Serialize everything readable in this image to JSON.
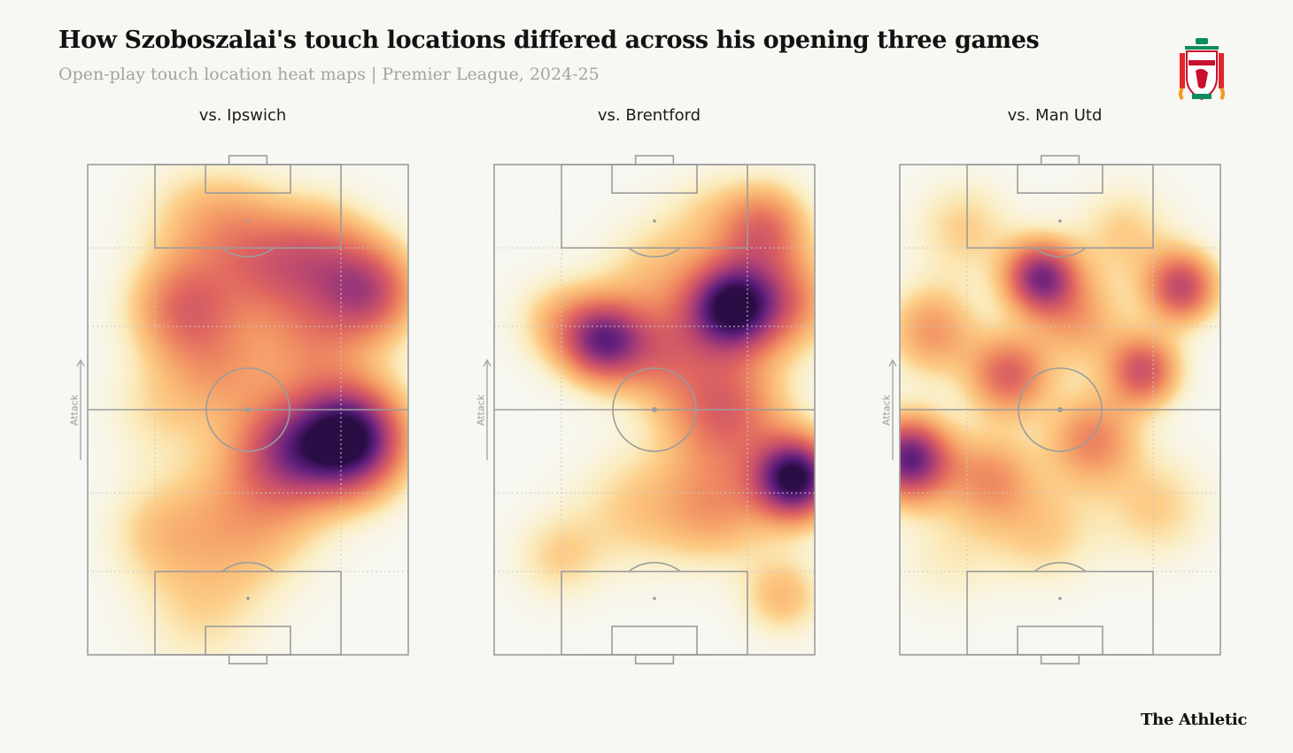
{
  "title": "How Szoboszalai's touch locations differed across his opening three games",
  "subtitle": "Open-play touch location heat maps | Premier League, 2024-25",
  "brand": "The Athletic",
  "crest_text": "LIVERPOOL",
  "attack_label": "Attack",
  "colors": {
    "background": "#f7f7f3",
    "pitch_lines": "#9c9c9c",
    "grid": "#c9c9c9",
    "scale": [
      "#fdf6d0",
      "#fde7a4",
      "#fbbf7a",
      "#f29363",
      "#e06660",
      "#bf4a6e",
      "#8f327c",
      "#5a1d7a",
      "#2b0d45"
    ]
  },
  "chart_data": [
    {
      "type": "heatmap",
      "title": "vs. Ipswich",
      "x_range": [
        0,
        100
      ],
      "y_range": [
        0,
        100
      ],
      "attack_direction": "up",
      "hotspots": [
        {
          "x": 82,
          "y": 44,
          "intensity": 1.0,
          "spread": 12
        },
        {
          "x": 62,
          "y": 42,
          "intensity": 0.5,
          "spread": 12
        },
        {
          "x": 88,
          "y": 74,
          "intensity": 0.55,
          "spread": 11
        },
        {
          "x": 30,
          "y": 71,
          "intensity": 0.45,
          "spread": 12
        },
        {
          "x": 56,
          "y": 78,
          "intensity": 0.3,
          "spread": 12
        },
        {
          "x": 72,
          "y": 82,
          "intensity": 0.35,
          "spread": 12
        },
        {
          "x": 42,
          "y": 58,
          "intensity": 0.25,
          "spread": 12
        },
        {
          "x": 70,
          "y": 64,
          "intensity": 0.28,
          "spread": 12
        },
        {
          "x": 50,
          "y": 28,
          "intensity": 0.3,
          "spread": 16
        },
        {
          "x": 22,
          "y": 25,
          "intensity": 0.18,
          "spread": 12
        },
        {
          "x": 22,
          "y": 50,
          "intensity": 0.14,
          "spread": 12
        },
        {
          "x": 45,
          "y": 88,
          "intensity": 0.22,
          "spread": 12
        },
        {
          "x": 30,
          "y": 90,
          "intensity": 0.12,
          "spread": 12
        },
        {
          "x": 35,
          "y": 8,
          "intensity": 0.15,
          "spread": 14
        }
      ]
    },
    {
      "type": "heatmap",
      "title": "vs. Brentford",
      "x_range": [
        0,
        100
      ],
      "y_range": [
        0,
        100
      ],
      "attack_direction": "up",
      "hotspots": [
        {
          "x": 74,
          "y": 71,
          "intensity": 0.95,
          "spread": 10
        },
        {
          "x": 94,
          "y": 36,
          "intensity": 1.0,
          "spread": 9
        },
        {
          "x": 34,
          "y": 64,
          "intensity": 0.7,
          "spread": 9
        },
        {
          "x": 72,
          "y": 50,
          "intensity": 0.5,
          "spread": 13
        },
        {
          "x": 84,
          "y": 87,
          "intensity": 0.45,
          "spread": 10
        },
        {
          "x": 92,
          "y": 72,
          "intensity": 0.35,
          "spread": 11
        },
        {
          "x": 52,
          "y": 62,
          "intensity": 0.35,
          "spread": 11
        },
        {
          "x": 70,
          "y": 30,
          "intensity": 0.3,
          "spread": 12
        },
        {
          "x": 50,
          "y": 78,
          "intensity": 0.2,
          "spread": 12
        },
        {
          "x": 20,
          "y": 68,
          "intensity": 0.22,
          "spread": 10
        },
        {
          "x": 20,
          "y": 20,
          "intensity": 0.18,
          "spread": 10
        },
        {
          "x": 45,
          "y": 30,
          "intensity": 0.2,
          "spread": 14
        },
        {
          "x": 90,
          "y": 12,
          "intensity": 0.25,
          "spread": 9
        },
        {
          "x": 65,
          "y": 90,
          "intensity": 0.12,
          "spread": 10
        }
      ]
    },
    {
      "type": "heatmap",
      "title": "vs. Man Utd",
      "x_range": [
        0,
        100
      ],
      "y_range": [
        0,
        100
      ],
      "attack_direction": "up",
      "hotspots": [
        {
          "x": 3,
          "y": 40,
          "intensity": 0.85,
          "spread": 9
        },
        {
          "x": 44,
          "y": 77,
          "intensity": 0.75,
          "spread": 8
        },
        {
          "x": 88,
          "y": 75,
          "intensity": 0.6,
          "spread": 8
        },
        {
          "x": 76,
          "y": 58,
          "intensity": 0.55,
          "spread": 8
        },
        {
          "x": 34,
          "y": 57,
          "intensity": 0.5,
          "spread": 9
        },
        {
          "x": 10,
          "y": 66,
          "intensity": 0.35,
          "spread": 10
        },
        {
          "x": 60,
          "y": 44,
          "intensity": 0.4,
          "spread": 10
        },
        {
          "x": 28,
          "y": 36,
          "intensity": 0.35,
          "spread": 10
        },
        {
          "x": 56,
          "y": 68,
          "intensity": 0.3,
          "spread": 10
        },
        {
          "x": 20,
          "y": 87,
          "intensity": 0.2,
          "spread": 11
        },
        {
          "x": 70,
          "y": 86,
          "intensity": 0.2,
          "spread": 11
        },
        {
          "x": 80,
          "y": 30,
          "intensity": 0.2,
          "spread": 12
        },
        {
          "x": 45,
          "y": 25,
          "intensity": 0.2,
          "spread": 12
        },
        {
          "x": 15,
          "y": 20,
          "intensity": 0.12,
          "spread": 12
        }
      ]
    }
  ]
}
